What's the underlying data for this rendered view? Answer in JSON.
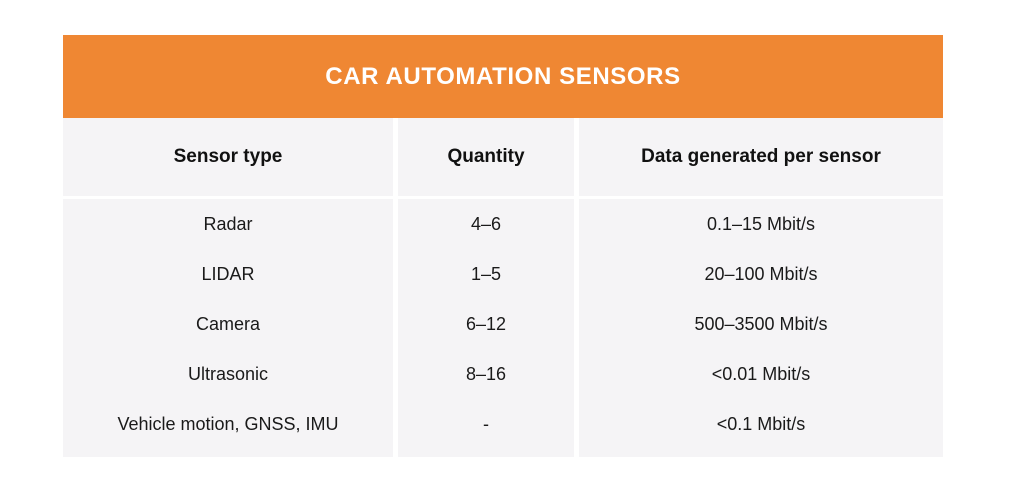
{
  "title": "CAR AUTOMATION SENSORS",
  "colors": {
    "accent_orange": "#EF8733",
    "row_gray": "#F5F4F6",
    "page_background": "#FFFFFF",
    "title_text": "#FFFFFF",
    "body_text": "#1A1A1A"
  },
  "table": {
    "columns": [
      "Sensor type",
      "Quantity",
      "Data generated per sensor"
    ],
    "rows": [
      {
        "sensor": "Radar",
        "quantity": "4–6",
        "data_rate": "0.1–15 Mbit/s"
      },
      {
        "sensor": "LIDAR",
        "quantity": "1–5",
        "data_rate": "20–100 Mbit/s"
      },
      {
        "sensor": "Camera",
        "quantity": "6–12",
        "data_rate": "500–3500 Mbit/s"
      },
      {
        "sensor": "Ultrasonic",
        "quantity": "8–16",
        "data_rate": "<0.01 Mbit/s"
      },
      {
        "sensor": "Vehicle motion, GNSS, IMU",
        "quantity": "-",
        "data_rate": "<0.1 Mbit/s"
      }
    ]
  },
  "chart_data": {
    "type": "table",
    "title": "CAR AUTOMATION SENSORS",
    "columns": [
      "Sensor type",
      "Quantity",
      "Data generated per sensor"
    ],
    "rows": [
      [
        "Radar",
        "4–6",
        "0.1–15 Mbit/s"
      ],
      [
        "LIDAR",
        "1–5",
        "20–100 Mbit/s"
      ],
      [
        "Camera",
        "6–12",
        "500–3500 Mbit/s"
      ],
      [
        "Ultrasonic",
        "8–16",
        "<0.01 Mbit/s"
      ],
      [
        "Vehicle motion, GNSS, IMU",
        "-",
        "<0.1 Mbit/s"
      ]
    ],
    "layout_hints": {
      "title_position": "top-banner",
      "banner_color": "#EF8733",
      "row_background": "#F5F4F6",
      "column_gutters": "white",
      "text_alignment": "center"
    }
  }
}
